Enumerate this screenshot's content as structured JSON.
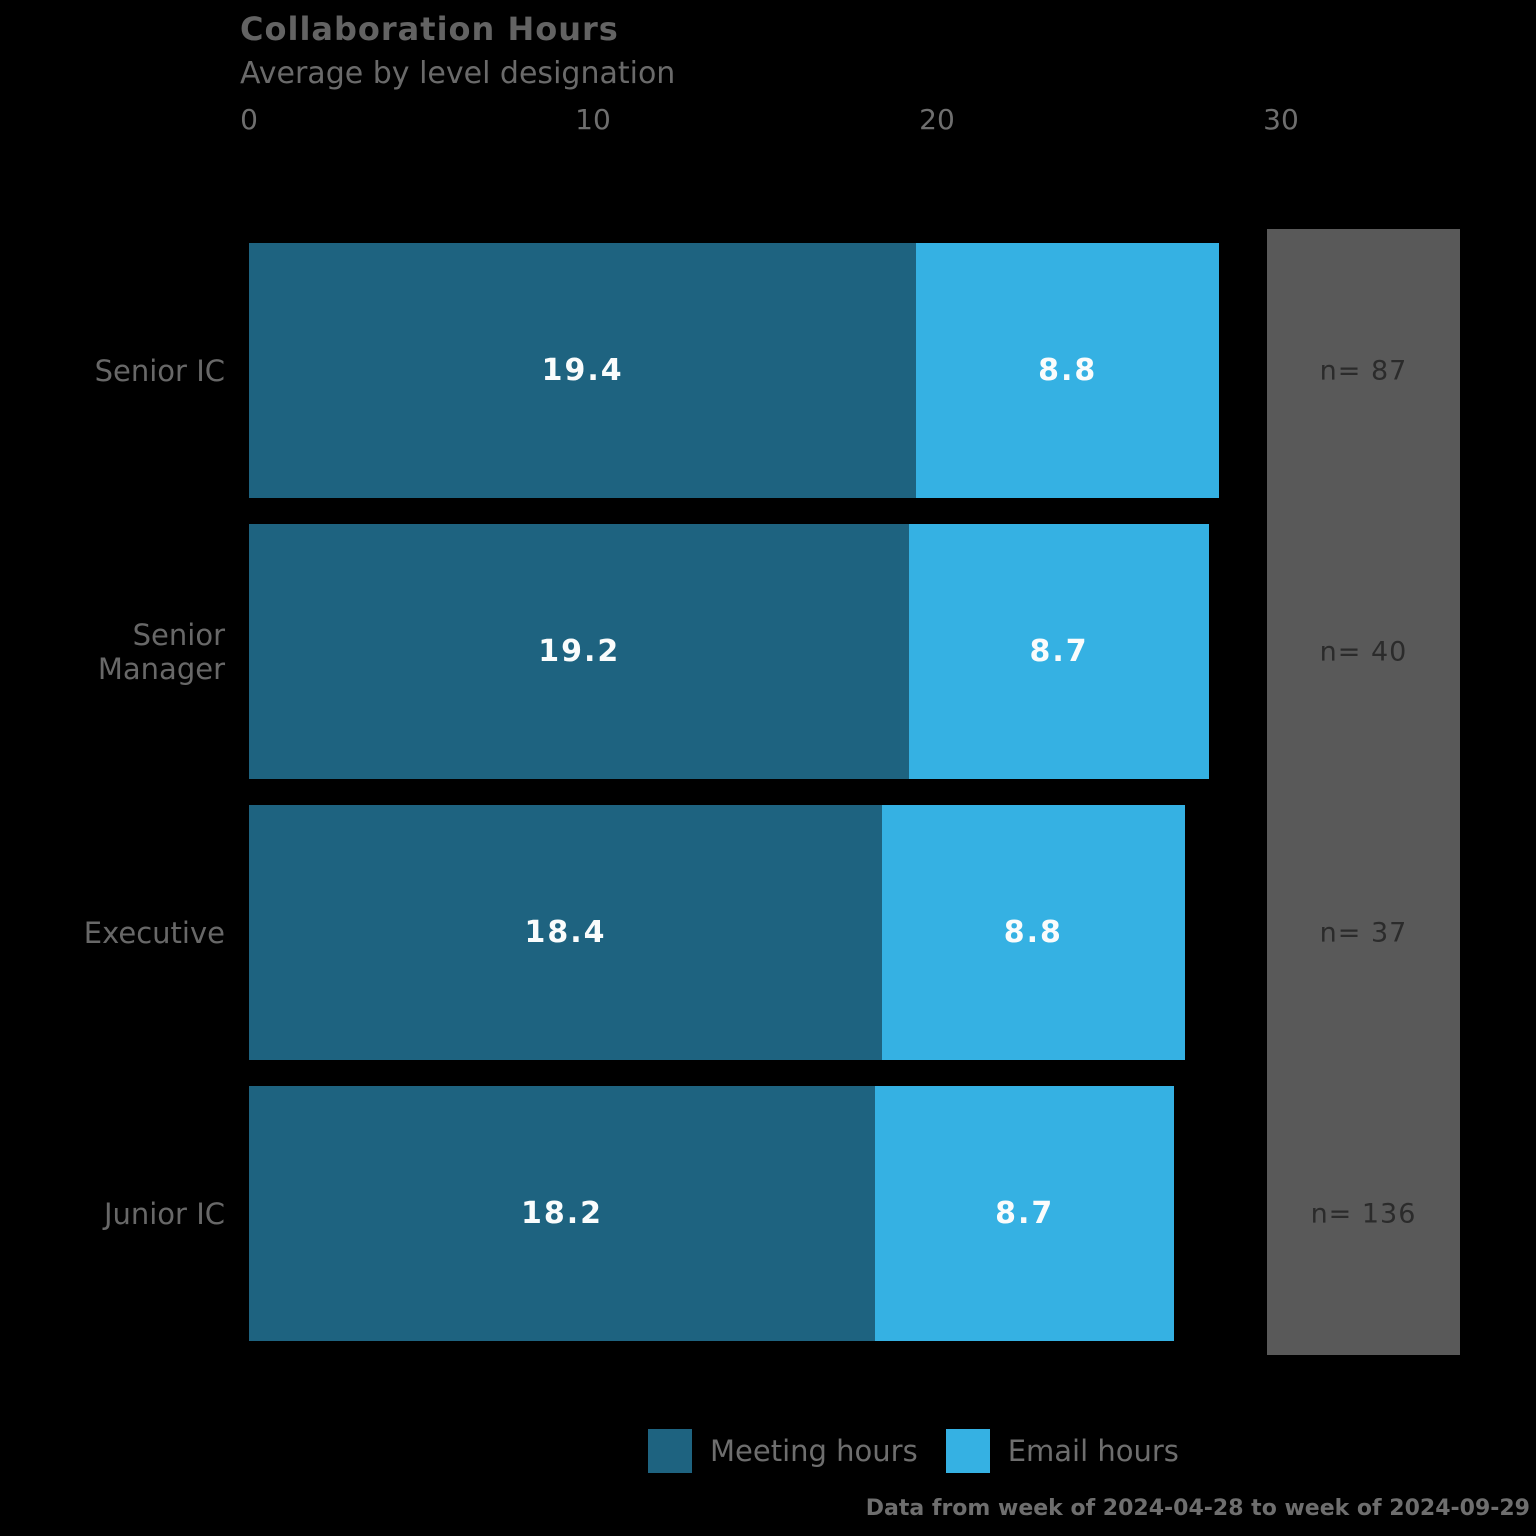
{
  "header": {
    "title": "Collaboration Hours",
    "subtitle": "Average by level designation"
  },
  "footer": {
    "text": "Data from week of 2024-04-28 to week of 2024-09-29"
  },
  "colors": {
    "meeting": "#1e6380",
    "email": "#35b1e3",
    "panel": "#595959",
    "background": "#000000"
  },
  "chart_data": {
    "type": "bar",
    "orientation": "horizontal",
    "stacked": true,
    "title": "Collaboration Hours",
    "subtitle": "Average by level designation",
    "categories": [
      "Senior IC",
      "Senior Manager",
      "Executive",
      "Junior IC"
    ],
    "series": [
      {
        "name": "Meeting hours",
        "color": "#1e6380",
        "values": [
          19.4,
          19.2,
          18.4,
          18.2
        ]
      },
      {
        "name": "Email hours",
        "color": "#35b1e3",
        "values": [
          8.8,
          8.7,
          8.8,
          8.7
        ]
      }
    ],
    "sample_label_prefix": "n= ",
    "sample_sizes": [
      87,
      40,
      37,
      136
    ],
    "x_ticks": [
      0,
      10,
      20,
      30
    ],
    "xlim": [
      0,
      35.2
    ],
    "axis_position": "top",
    "grid": false,
    "legend_position": "bottom",
    "value_labels": "inside-center"
  }
}
